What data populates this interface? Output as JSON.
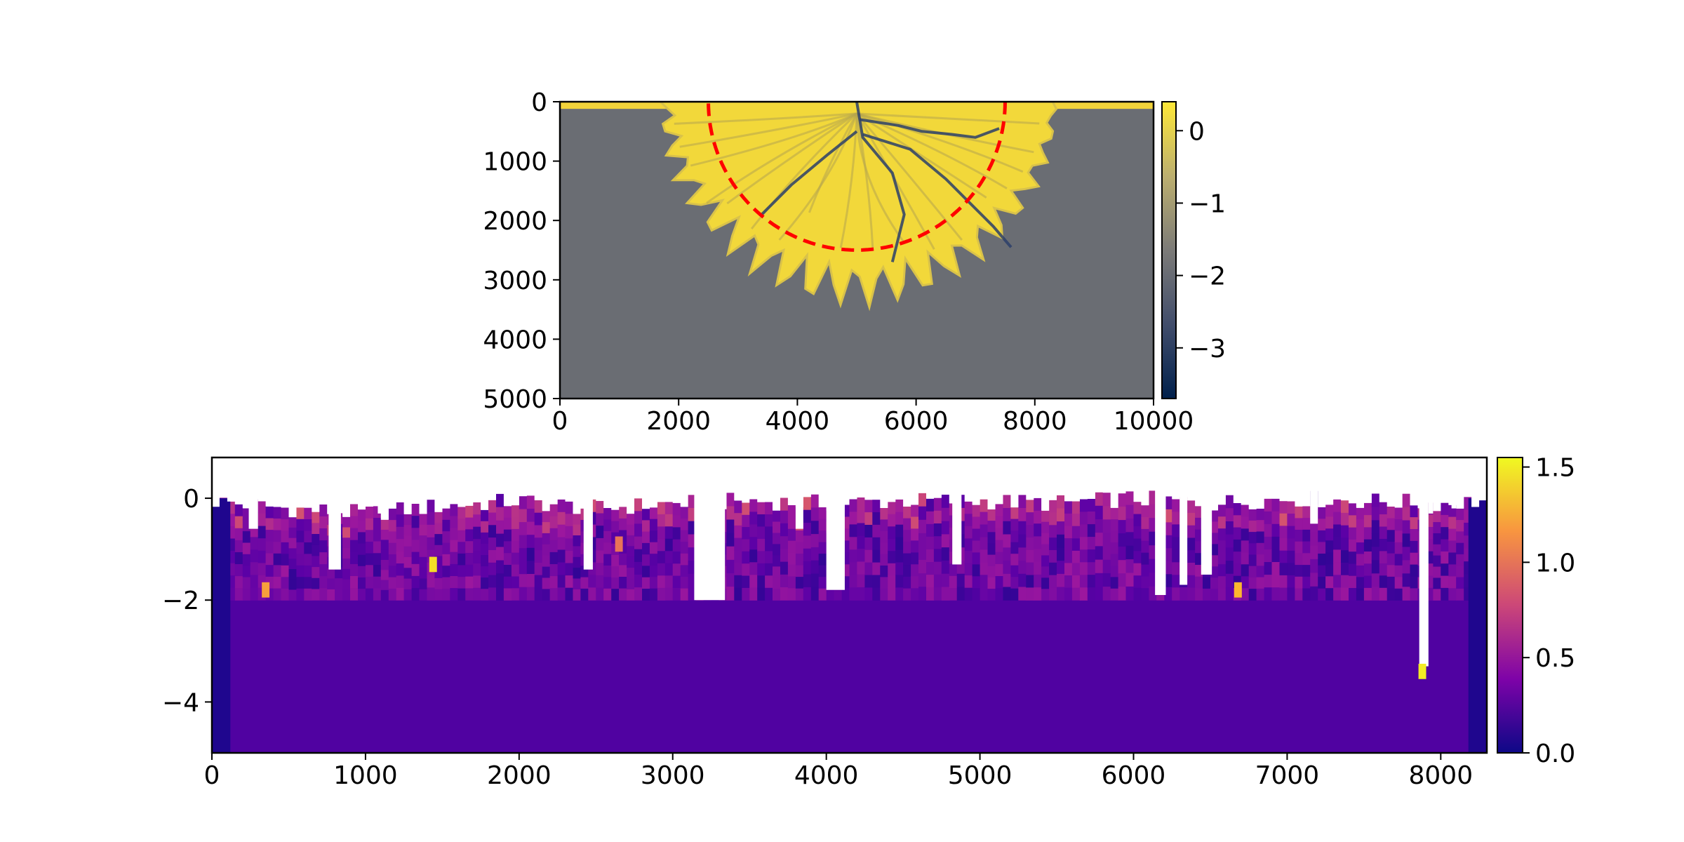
{
  "chart_data": [
    {
      "type": "heatmap",
      "title": "",
      "xlabel": "",
      "ylabel": "",
      "xlim": [
        0,
        10000
      ],
      "ylim": [
        5000,
        0
      ],
      "y_inverted": true,
      "xticks": [
        0,
        2000,
        4000,
        6000,
        8000,
        10000
      ],
      "yticks": [
        0,
        1000,
        2000,
        3000,
        4000,
        5000
      ],
      "colormap": "cividis",
      "colorbar": {
        "range": [
          -3.7,
          0.4
        ],
        "ticks": [
          0,
          -1,
          -2,
          -3
        ],
        "tick_labels": [
          "0",
          "−1",
          "−2",
          "−3"
        ]
      },
      "background_value": -1.75,
      "background_color": "#6a6d73",
      "surface_strip": {
        "depth": [
          0,
          120
        ],
        "color": "#f2d33a"
      },
      "deposit_extent": {
        "x_range": [
          1800,
          8300
        ],
        "max_depth": 3100,
        "color": "#f2d83a"
      },
      "channels": [
        {
          "points": [
            [
              5000,
              0
            ],
            [
              5100,
              600
            ],
            [
              5600,
              1200
            ],
            [
              5800,
              1900
            ],
            [
              5600,
              2700
            ]
          ]
        },
        {
          "points": [
            [
              5050,
              300
            ],
            [
              5700,
              400
            ],
            [
              6100,
              500
            ],
            [
              6600,
              550
            ],
            [
              7000,
              600
            ],
            [
              7400,
              450
            ]
          ]
        },
        {
          "points": [
            [
              5100,
              550
            ],
            [
              5900,
              800
            ],
            [
              6500,
              1300
            ],
            [
              6900,
              1700
            ],
            [
              7300,
              2100
            ],
            [
              7600,
              2450
            ]
          ]
        },
        {
          "points": [
            [
              5000,
              500
            ],
            [
              4500,
              900
            ],
            [
              3900,
              1400
            ],
            [
              3400,
              1900
            ]
          ]
        }
      ],
      "overlay": {
        "type": "semicircle",
        "center": [
          5000,
          0
        ],
        "radius": 2500,
        "color": "#ff0000",
        "linestyle": "dashed"
      }
    },
    {
      "type": "heatmap",
      "title": "",
      "xlabel": "",
      "ylabel": "",
      "xlim": [
        0,
        8300
      ],
      "ylim": [
        -5,
        0.8
      ],
      "xticks": [
        0,
        1000,
        2000,
        3000,
        4000,
        5000,
        6000,
        7000,
        8000
      ],
      "yticks": [
        0,
        -2,
        -4
      ],
      "ytick_labels": [
        "0",
        "−2",
        "−4"
      ],
      "colormap": "plasma",
      "colorbar": {
        "range": [
          0,
          1.55
        ],
        "ticks": [
          0.0,
          0.5,
          1.0,
          1.5
        ],
        "tick_labels": [
          "0.0",
          "0.5",
          "1.0",
          "1.5"
        ]
      },
      "cell_width": 50,
      "upper_layer_bottom": -2,
      "lower_layer": {
        "y_range": [
          -5,
          -2
        ],
        "value": 0.22
      },
      "edge_columns": [
        {
          "x_range": [
            0,
            120
          ],
          "value": 0.06
        },
        {
          "x_range": [
            8180,
            8300
          ],
          "value": 0.06
        }
      ],
      "surface_profile_x": [
        0,
        500,
        1000,
        1500,
        2000,
        2500,
        3000,
        3500,
        4000,
        4500,
        5000,
        5500,
        6000,
        6500,
        7000,
        7500,
        8000,
        8300
      ],
      "surface_profile_y": [
        -0.05,
        -0.2,
        -0.3,
        -0.15,
        -0.05,
        -0.2,
        -0.1,
        -0.05,
        -0.1,
        -0.05,
        -0.05,
        -0.1,
        0.0,
        -0.1,
        0.0,
        -0.05,
        -0.1,
        -0.05
      ],
      "gaps": [
        {
          "x_range": [
            240,
            300
          ],
          "bottom": -0.6
        },
        {
          "x_range": [
            760,
            840
          ],
          "bottom": -1.4
        },
        {
          "x_range": [
            1080,
            1130
          ],
          "bottom": -0.3
        },
        {
          "x_range": [
            2420,
            2480
          ],
          "bottom": -1.4
        },
        {
          "x_range": [
            3140,
            3340
          ],
          "bottom": -2.0
        },
        {
          "x_range": [
            3800,
            3850
          ],
          "bottom": -0.6
        },
        {
          "x_range": [
            4000,
            4120
          ],
          "bottom": -1.8
        },
        {
          "x_range": [
            4820,
            4880
          ],
          "bottom": -1.3
        },
        {
          "x_range": [
            6140,
            6210
          ],
          "bottom": -1.9
        },
        {
          "x_range": [
            6300,
            6350
          ],
          "bottom": -1.7
        },
        {
          "x_range": [
            6440,
            6510
          ],
          "bottom": -1.5
        },
        {
          "x_range": [
            7150,
            7200
          ],
          "bottom": -0.5
        },
        {
          "x_range": [
            7860,
            7920
          ],
          "bottom": -3.3
        },
        {
          "x_range": [
            7920,
            7950
          ],
          "bottom": -0.3
        },
        {
          "x_range": [
            8070,
            8100
          ],
          "bottom": -0.2
        }
      ],
      "hotspots": [
        {
          "x": 350,
          "y": -1.8,
          "value": 1.2
        },
        {
          "x": 1440,
          "y": -1.3,
          "value": 1.45
        },
        {
          "x": 2650,
          "y": -0.9,
          "value": 1.0
        },
        {
          "x": 6680,
          "y": -1.8,
          "value": 1.3
        },
        {
          "x": 7880,
          "y": -3.4,
          "value": 1.5
        }
      ]
    }
  ]
}
